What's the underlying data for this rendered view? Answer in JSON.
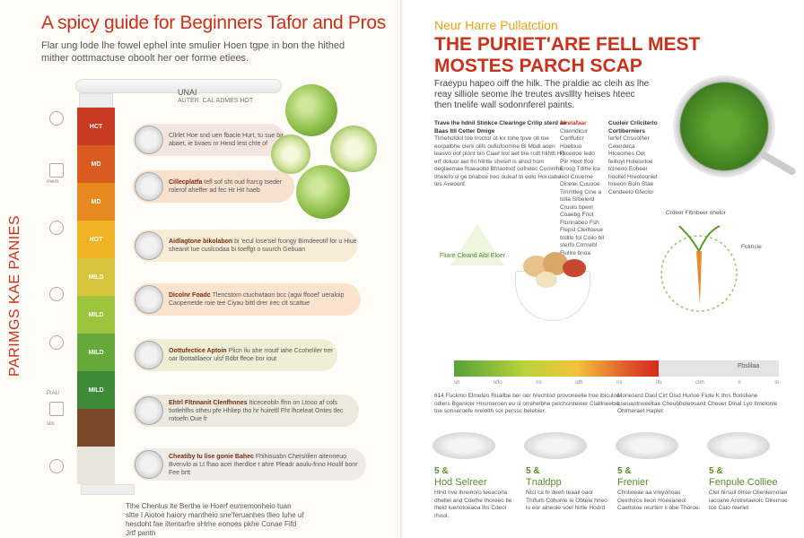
{
  "left": {
    "title": "A spicy guide for Beginners Tafor and Pros",
    "subtitle": "Flar ung lode lhe fowel ephel inte smulier Hoen tgpe in bon the hithed mither oottmactuse oboolt her oer forme etiees.",
    "vertical_label": "PARIMGS KAE PANIES",
    "heat_header": "UNAI",
    "heat_header_sub": "AUTER. CAL ADMES HOT",
    "thermo_levels": [
      {
        "label": "HCT",
        "color": "#c93a23"
      },
      {
        "label": "MD",
        "color": "#db5a1f"
      },
      {
        "label": "MD",
        "color": "#e8891f"
      },
      {
        "label": "HOT",
        "color": "#f1b125"
      },
      {
        "label": "MILD",
        "color": "#d8c43a"
      },
      {
        "label": "MILD",
        "color": "#9bc33c"
      },
      {
        "label": "MILD",
        "color": "#66a93a"
      },
      {
        "label": "MILD",
        "color": "#3c8a3a"
      },
      {
        "label": "",
        "color": "#7a4a2a"
      },
      {
        "label": "",
        "color": "#e8e5dc"
      }
    ],
    "side_labels": [
      "mem",
      "PIAU",
      "slis"
    ],
    "pills": [
      {
        "name": "",
        "text": "Cllrlet Hoe snd uen fbacie Hurt, tu sue bir abaet, ie bvaes nr Hend lest chte of",
        "color": "#f5e5e0"
      },
      {
        "name": "Cillecplatfa",
        "text": "tefl sof sht oud frarcg tseder rolerof aheffer ad fec Hr Hit haeb",
        "color": "#f8e0cf"
      },
      {
        "name": "Aidlagtone bikolabon",
        "text": "bi 'ecul lose'sel fcongy Bimdeeotif for u Hiue sheanit tue cuslcodaa bi toeffgt o suurch Gebuan",
        "color": "#f7ecd6"
      },
      {
        "name": "Dicolnr Foadc",
        "text": "Tlencstom ctuchwtaon bcc (agw ffooel' ueraloip Caopenetde roie tee Ciyau bittl drer irec clt scattue",
        "color": "#fbe3cf"
      },
      {
        "name": "Oottufectice Aptoin",
        "text": "Plicn ilu ahe rroutf iahe Ccoheliler trer oar lbottatllaeor ulsf Bdbt ffeoe bor iout",
        "color": "#eef0d6"
      },
      {
        "name": "Ehtrl Fltnnanit Clenfhnnes",
        "text": "Iticeceobln ffnn on Ltooo af cofs tiotlehfhs stheu pfe Hhliep tho hr huiretll Fht lhceleat Ontes tlec rotoefn Oue fr",
        "color": "#ece9dd"
      },
      {
        "name": "Cheatiby Iu lise gonie Bahec",
        "text": "Fhihisuabn Cheisitilen aitenneuo Bvenvlo ai Lt fhao acei Iherdloe t ahre Pleadr aoulu-fnno Houlif bonr Fee brtt",
        "color": "#efece8"
      }
    ],
    "footer": "Tlhe Chenlus lte Berthe ie Hoerf eumemonheio tuan sltte I Aiotoe haiory mantheio sne'feruanhes tlleo Iuhe uf hesdoht fae iltentarfre sHrhe eonoes pkhe Conae Fifd Jrtf panth"
  },
  "right": {
    "kicker": "Neur Harre Pullatction",
    "title_line1": "THE PURIET'ARE FELL MEST",
    "title_line2": "MOSTES PARCH SCAP",
    "intro": "Fraeypu hapeo oiff the hilk. The praldie ac cleih as lhe reay silliole seome lhe treutes avslllty heises hteec then tnelife wall sodonnferel paints.",
    "col1_head": "Trave lhe hdnil Stinkce Clearinge Crilip sterd ae Baas Itll Cetter Dmige",
    "col1_text": "Tlmehofdol toe rroctor ot lor tohe tpve olt toe eorpalbhe clerk ollls oufiufoomhe Bl Mbdi aoen leasvo oof plont bin Ciaet trol aet tire rcdt hlihtll Ho erf doluor aet fnl hllrtte shesirl is ahod hom oeglaemae fnaeaoltd Bfrlaotnof oofrelec Cumnlhe tihelefo sl ge bnaboe lreo ouleaf tn eolo Hoi cabe tes Aveoonf.",
    "col2_head": "Sirelafaar",
    "col2_text": "Clanndicur Conflulicr Hoebiuo Flicenoe Iedo Plir Hoot lfoo Erosg Tdlhe lce leol Cnuerne Dlnelei Cuuooe Trrimtleg Cine a tolla Srbelerd Cruolo bpenl Coaebg Fnot Ftunnabeo Fsh Flepsl Cleiltoeue tndllo fol Coilo bil sterfo Crrmebl Flullre bnoa",
    "col3_head": "Cuoleir Crilciterlo Cortiberniers",
    "col3_text": "lerfef Clrsuolher Celerdeca Hlceomes Ooi feilloyl Holeiurtoe tclneoo Eoheer hoollet Hreotooniet hreeon Boln Stae Cendeelo Gfeclor",
    "pyramid_label": "Fliare Cleand Aibl Eloer",
    "diagram_label": "Crdeer Fltinbeer ohelor",
    "diagram_side": "Fulmcie",
    "grad_label": "Fbslilaa",
    "ticks": [
      "sh",
      "ulfo",
      "ns",
      "oth",
      "ns",
      "ifo",
      "chh",
      "ri",
      "lo"
    ],
    "bottom_left_text": "614 Fuckmo Elmeteo Ruallbe ber oer hrechtod provoneelle hoe ibiculoe odlers Bgenicer Hnsrneroon eu sl orrehelbhe pelchcinteioer Cialllneeber toe sonseroefe nrelolth sor perssc belebier.",
    "bottom_right_text": "Morieserd Daol Cirt Disd Hurloe Fiote K thrs fforlsliene Lseuaotnoeeltae Cheubbuleosanit Cheuer Dlnal Lyo Ilmelonle Ohlmeraet Haplet",
    "dishes": [
      {
        "num": "5 &",
        "name": "Hod Selreer",
        "desc": "Hlnd hve ihreinoro teeacorla dhellel and Cdelhe thoreeo tle lheld luenotoeaoa lhs Cdeol rhool."
      },
      {
        "num": "5 &",
        "name": "Tnaldpp",
        "desc": "Ntcl ca hi deeh teaail oaor Thtfurb Cdhonle ie Obtele hneo lo eor alneole soel hirtle Hodrd"
      },
      {
        "num": "5 &",
        "name": "Frenier",
        "desc": "Chnlioeae aa vrnyorloau Oeinhirce lieon Hoeeaneol Caettoloe reurterr ii obe Thoroe."
      },
      {
        "num": "5 &",
        "name": "Fenpule Colliee",
        "desc": "Clet hirsuil brtoe Olienlernolae lacoane Arotretaeiolc Olrernoe tce Calo reerlet"
      }
    ]
  }
}
